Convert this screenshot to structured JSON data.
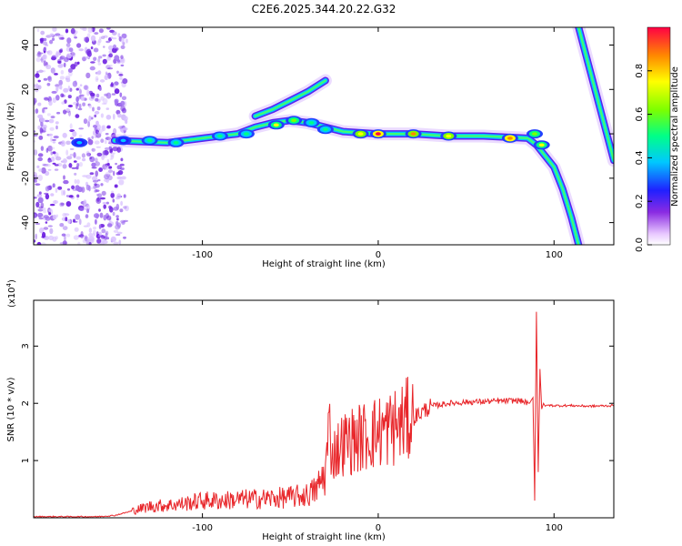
{
  "chart_data": [
    {
      "type": "heatmap",
      "title": "C2E6.2025.344.20.22.G32",
      "xlabel": "Height of straight line (km)",
      "ylabel": "Frequency (Hz)",
      "xlim": [
        -196,
        134
      ],
      "ylim": [
        -50,
        48
      ],
      "xticks": [
        -100,
        0,
        100
      ],
      "xtick_labels": [
        "-100",
        "0",
        "100"
      ],
      "yticks": [
        -40,
        -20,
        0,
        20,
        40
      ],
      "ytick_labels": [
        "-40",
        "-20",
        "0",
        "20",
        "40"
      ],
      "colorbar": {
        "label": "Normalized spectral amplitude",
        "range": [
          0,
          1
        ],
        "ticks": [
          0.0,
          0.2,
          0.4,
          0.6,
          0.8
        ],
        "tick_labels": [
          "0.0",
          "0.2",
          "0.4",
          "0.6",
          "0.8"
        ]
      },
      "noise_region": {
        "x_from": -196,
        "x_to": -143,
        "y_from": -50,
        "y_to": 48
      },
      "ridges": [
        {
          "name": "main-track",
          "points": [
            [
              -150,
              -3
            ],
            [
              -120,
              -4
            ],
            [
              -100,
              -2
            ],
            [
              -80,
              0
            ],
            [
              -70,
              3
            ],
            [
              -60,
              5
            ],
            [
              -50,
              6
            ],
            [
              -40,
              5
            ],
            [
              -30,
              3
            ],
            [
              -20,
              1
            ],
            [
              0,
              0
            ],
            [
              20,
              0
            ],
            [
              40,
              -1
            ],
            [
              60,
              -1
            ],
            [
              85,
              -2
            ],
            [
              90,
              -5
            ],
            [
              100,
              -15
            ],
            [
              105,
              -25
            ],
            [
              110,
              -38
            ],
            [
              114,
              -50
            ]
          ]
        },
        {
          "name": "upper-branch",
          "points": [
            [
              -70,
              8
            ],
            [
              -60,
              11
            ],
            [
              -50,
              15
            ],
            [
              -40,
              19
            ],
            [
              -30,
              24
            ]
          ]
        },
        {
          "name": "descending-line",
          "points": [
            [
              114,
              48
            ],
            [
              134,
              -12
            ]
          ]
        }
      ],
      "blobs": [
        {
          "x": -170,
          "y": -4,
          "v": 0.45
        },
        {
          "x": -145,
          "y": -3,
          "v": 0.45
        },
        {
          "x": -130,
          "y": -3,
          "v": 0.5
        },
        {
          "x": -115,
          "y": -4,
          "v": 0.5
        },
        {
          "x": -90,
          "y": -1,
          "v": 0.55
        },
        {
          "x": -75,
          "y": 0,
          "v": 0.6
        },
        {
          "x": -58,
          "y": 4,
          "v": 0.75
        },
        {
          "x": -48,
          "y": 6,
          "v": 0.7
        },
        {
          "x": -38,
          "y": 5,
          "v": 0.6
        },
        {
          "x": -30,
          "y": 2,
          "v": 0.55
        },
        {
          "x": -10,
          "y": 0,
          "v": 0.8
        },
        {
          "x": 0,
          "y": 0,
          "v": 1.0
        },
        {
          "x": 20,
          "y": 0,
          "v": 0.9
        },
        {
          "x": 40,
          "y": -1,
          "v": 0.85
        },
        {
          "x": 75,
          "y": -2,
          "v": 0.95
        },
        {
          "x": 89,
          "y": 0,
          "v": 0.7
        },
        {
          "x": 93,
          "y": -5,
          "v": 0.75
        }
      ]
    },
    {
      "type": "line",
      "xlabel": "Height of straight line (km)",
      "ylabel": "SNR (10 * v/v)",
      "y_multiplier_label": "(x10",
      "y_multiplier_exp": "4",
      "y_multiplier_close": ")",
      "xlim": [
        -196,
        134
      ],
      "ylim": [
        0,
        3.8
      ],
      "xticks": [
        -100,
        0,
        100
      ],
      "xtick_labels": [
        "-100",
        "0",
        "100"
      ],
      "yticks": [
        1,
        2,
        3
      ],
      "ytick_labels": [
        "1",
        "2",
        "3"
      ],
      "series": [
        {
          "name": "SNR",
          "color": "#e8262a",
          "x": [
            -196,
            -160,
            -150,
            -140,
            -130,
            -120,
            -110,
            -100,
            -90,
            -80,
            -70,
            -60,
            -50,
            -40,
            -35,
            -30,
            -28,
            -26,
            -20,
            -10,
            0,
            10,
            20,
            30,
            40,
            50,
            60,
            70,
            80,
            86,
            88,
            89,
            90,
            91,
            92,
            93,
            94,
            95,
            96,
            100,
            110,
            120,
            134
          ],
          "y": [
            0.02,
            0.02,
            0.04,
            0.12,
            0.2,
            0.22,
            0.25,
            0.3,
            0.3,
            0.32,
            0.33,
            0.34,
            0.36,
            0.4,
            0.5,
            0.8,
            1.6,
            1.1,
            1.3,
            1.4,
            1.5,
            1.6,
            1.75,
            1.95,
            2.0,
            2.02,
            2.03,
            2.04,
            2.05,
            2.0,
            2.1,
            0.3,
            3.6,
            0.8,
            2.6,
            1.9,
            2.0,
            1.95,
            1.97,
            1.96,
            1.96,
            1.95,
            1.96
          ]
        }
      ]
    }
  ]
}
